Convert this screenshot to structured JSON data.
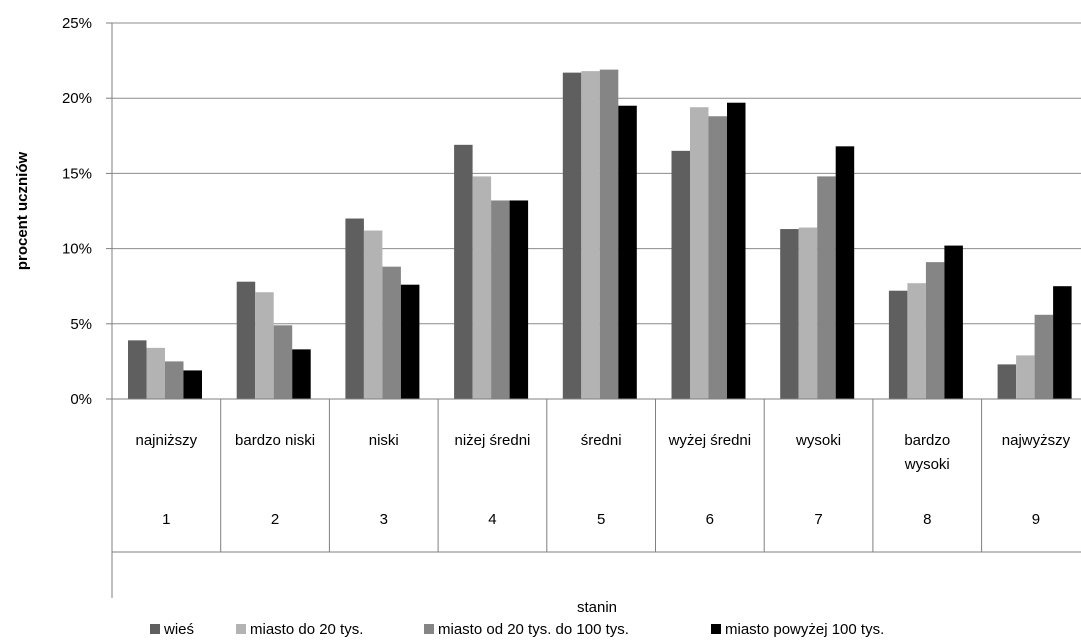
{
  "chart_data": {
    "type": "bar",
    "title": "",
    "ylabel": "procent uczniów",
    "xlabel": "stanin",
    "ylim": [
      0,
      25
    ],
    "yticks": [
      0,
      5,
      10,
      15,
      20,
      25
    ],
    "ytick_labels": [
      "0%",
      "5%",
      "10%",
      "15%",
      "20%",
      "25%"
    ],
    "grid": true,
    "legend_position": "bottom",
    "categories": [
      {
        "label": "najniższy",
        "number": "1"
      },
      {
        "label": "bardzo niski",
        "number": "2"
      },
      {
        "label": "niski",
        "number": "3"
      },
      {
        "label": "niżej średni",
        "number": "4"
      },
      {
        "label": "średni",
        "number": "5"
      },
      {
        "label": "wyżej średni",
        "number": "6"
      },
      {
        "label": "wysoki",
        "number": "7"
      },
      {
        "label": "bardzo wysoki",
        "number": "8"
      },
      {
        "label": "najwyższy",
        "number": "9"
      }
    ],
    "series": [
      {
        "name": "wieś",
        "color": "#5f5f5f",
        "values": [
          3.9,
          7.8,
          12.0,
          16.9,
          21.7,
          16.5,
          11.3,
          7.2,
          2.3
        ]
      },
      {
        "name": "miasto do 20 tys.",
        "color": "#b3b3b3",
        "values": [
          3.4,
          7.1,
          11.2,
          14.8,
          21.8,
          19.4,
          11.4,
          7.7,
          2.9
        ]
      },
      {
        "name": "miasto od 20 tys. do 100 tys.",
        "color": "#858585",
        "values": [
          2.5,
          4.9,
          8.8,
          13.2,
          21.9,
          18.8,
          14.8,
          9.1,
          5.6
        ]
      },
      {
        "name": "miasto powyżej 100 tys.",
        "color": "#000000",
        "values": [
          1.9,
          3.3,
          7.6,
          13.2,
          19.5,
          19.7,
          16.8,
          10.2,
          7.5
        ]
      }
    ]
  }
}
